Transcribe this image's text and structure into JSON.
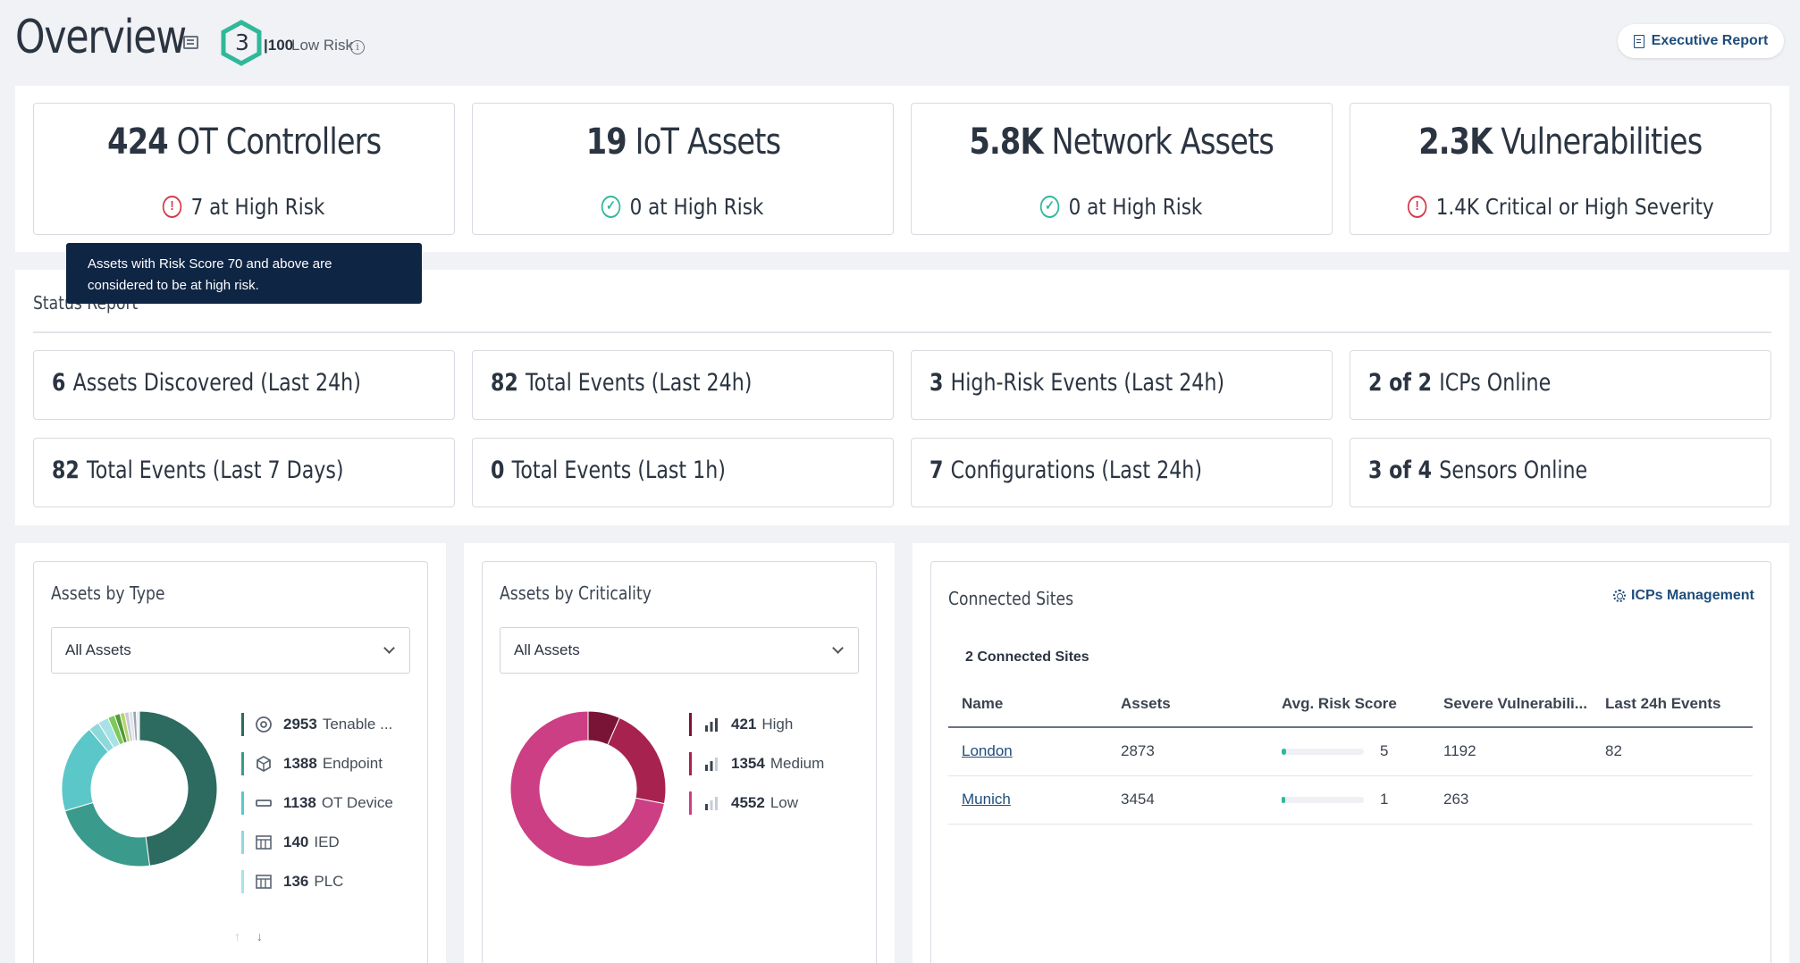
{
  "header": {
    "title": "Overview",
    "risk_score": "3",
    "risk_scale": "100",
    "risk_label": "Low Risk",
    "exec_report_label": "Executive Report"
  },
  "kpis": [
    {
      "value": "424",
      "label": "OT Controllers",
      "status": "7 at High Risk",
      "status_icon": "alert-icon"
    },
    {
      "value": "19",
      "label": "IoT Assets",
      "status": "0 at High Risk",
      "status_icon": "check-icon"
    },
    {
      "value": "5.8K",
      "label": "Network Assets",
      "status": "0 at High Risk",
      "status_icon": "check-icon"
    },
    {
      "value": "2.3K",
      "label": "Vulnerabilities",
      "status": "1.4K Critical or High Severity",
      "status_icon": "alert-icon"
    }
  ],
  "tooltip": "Assets with Risk Score 70 and above are considered to be at high risk.",
  "status_report": {
    "title": "Status Report",
    "stats": [
      {
        "value": "6",
        "label": "Assets Discovered (Last 24h)"
      },
      {
        "value": "82",
        "label": "Total Events (Last 24h)"
      },
      {
        "value": "3",
        "label": "High-Risk Events (Last 24h)"
      },
      {
        "value": "2 of 2",
        "label": "ICPs Online"
      },
      {
        "value": "82",
        "label": "Total Events (Last 7 Days)"
      },
      {
        "value": "0",
        "label": "Total Events (Last 1h)"
      },
      {
        "value": "7",
        "label": "Configurations (Last 24h)"
      },
      {
        "value": "3 of 4",
        "label": "Sensors Online"
      }
    ]
  },
  "assets_by_type": {
    "title": "Assets by Type",
    "filter": "All Assets",
    "legend": [
      {
        "value": "2953",
        "label": "Tenable ...",
        "icon": "tenable-icon",
        "color": "#2d6a5f"
      },
      {
        "value": "1388",
        "label": "Endpoint",
        "icon": "cube-icon",
        "color": "#3a9a8c"
      },
      {
        "value": "1138",
        "label": "OT Device",
        "icon": "device-icon",
        "color": "#5cc7c9"
      },
      {
        "value": "140",
        "label": "IED",
        "icon": "grid-icon",
        "color": "#8ed8dc"
      },
      {
        "value": "136",
        "label": "PLC",
        "icon": "grid-icon",
        "color": "#a7e2e6"
      }
    ],
    "colors": [
      "#2d6a5f",
      "#3a9a8c",
      "#5cc7c9",
      "#8ed8dc",
      "#a7e2e6",
      "#7ec95a",
      "#4f9a3a",
      "#b8d36e",
      "#c7cdd6",
      "#dfe3e8",
      "#9aa5b5",
      "#e9ecef"
    ]
  },
  "assets_by_criticality": {
    "title": "Assets by Criticality",
    "filter": "All Assets",
    "legend": [
      {
        "value": "421",
        "label": "High",
        "color": "#7a1437"
      },
      {
        "value": "1354",
        "label": "Medium",
        "color": "#a8224f"
      },
      {
        "value": "4552",
        "label": "Low",
        "color": "#cc3f84"
      }
    ]
  },
  "connected_sites": {
    "title": "Connected Sites",
    "manage_label": "ICPs Management",
    "count_label": "2 Connected Sites",
    "columns": [
      "Name",
      "Assets",
      "Avg. Risk Score",
      "Severe Vulnerabili...",
      "Last 24h Events"
    ],
    "rows": [
      {
        "name": "London",
        "assets": "2873",
        "risk": "5",
        "risk_fraction": 0.05,
        "severe": "1192",
        "events": "82"
      },
      {
        "name": "Munich",
        "assets": "3454",
        "risk": "1",
        "risk_fraction": 0.01,
        "severe": "263",
        "events": ""
      }
    ]
  }
}
